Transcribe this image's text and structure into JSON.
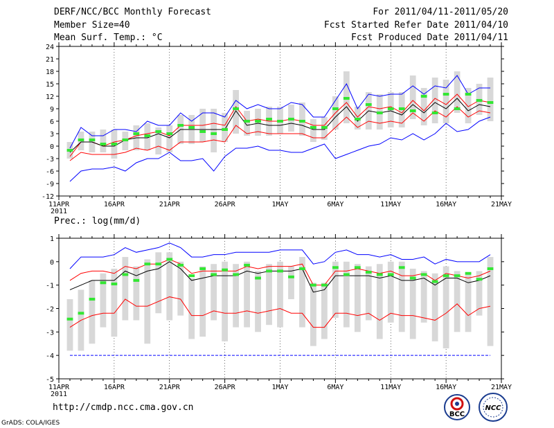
{
  "header": {
    "title": "DERF/NCC/BCC Monthly Forecast",
    "member_size": "Member Size=40",
    "variable": "Mean Surf. Temp.: °C",
    "period": "For 2011/04/11-2011/05/20",
    "start_date": "Fcst Started Refer Date 2011/04/10",
    "produced_date": "Fcst Produced Date 2011/04/11"
  },
  "footer": {
    "url": "http://cmdp.ncc.cma.gov.cn",
    "grads": "GrADS: COLA/IGES",
    "logo_left": "BCC",
    "logo_right": "NCC"
  },
  "colors": {
    "box": "#d8d8d8",
    "median": "#33e633",
    "mean": "#000000",
    "quartile": "#ff0000",
    "extreme": "#0000ff"
  },
  "chart_data": [
    {
      "type": "box-line",
      "title": "Mean Surf. Temp.: °C",
      "xlabel": "",
      "ylabel": "",
      "ylim": [
        -12,
        24
      ],
      "yticks": [
        -12,
        -9,
        -6,
        -3,
        0,
        3,
        6,
        9,
        12,
        15,
        18,
        21,
        24
      ],
      "xticks": [
        {
          "day": 0,
          "label": "11APR",
          "sub": "2011"
        },
        {
          "day": 5,
          "label": "16APR"
        },
        {
          "day": 10,
          "label": "21APR"
        },
        {
          "day": 15,
          "label": "26APR"
        },
        {
          "day": 20,
          "label": "1MAY"
        },
        {
          "day": 25,
          "label": "6MAY"
        },
        {
          "day": 30,
          "label": "11MAY"
        },
        {
          "day": 35,
          "label": "16MAY"
        },
        {
          "day": 40,
          "label": "21MAY"
        }
      ],
      "x": [
        1,
        2,
        3,
        4,
        5,
        6,
        7,
        8,
        9,
        10,
        11,
        12,
        13,
        14,
        15,
        16,
        17,
        18,
        19,
        20,
        21,
        22,
        23,
        24,
        25,
        26,
        27,
        28,
        29,
        30,
        31,
        32,
        33,
        34,
        35,
        36,
        37,
        38,
        39
      ],
      "series": [
        {
          "name": "max",
          "values": [
            -8.5,
            -6,
            -5.5,
            -5.5,
            -5,
            -6,
            -4,
            -3,
            -3,
            -1.5,
            -3.5,
            -3.5,
            -3,
            -6,
            -2.5,
            -0.5,
            -0.5,
            0,
            -1,
            -1,
            -1.5,
            -1.5,
            -0.5,
            0.5,
            -3,
            -2,
            -1,
            0,
            0.5,
            2,
            1.5,
            3,
            1.5,
            3,
            5.5,
            3.5,
            4,
            6,
            7
          ]
        },
        {
          "name": "q75",
          "values": [
            -2.5,
            1,
            1,
            0,
            1,
            1.5,
            2.5,
            3,
            3.5,
            2.5,
            5,
            5,
            5,
            5.5,
            5,
            9.5,
            6,
            6.5,
            6,
            6,
            6.5,
            6,
            5,
            5,
            8,
            10.5,
            7,
            9.5,
            9,
            9.5,
            8,
            11,
            8.5,
            11.5,
            10,
            12.5,
            9.5,
            11,
            10.5
          ]
        },
        {
          "name": "mean",
          "values": [
            -1.5,
            1,
            1,
            0,
            0,
            1.5,
            2,
            2,
            3,
            2,
            4,
            4,
            4,
            4,
            4,
            8.5,
            5,
            5.5,
            5,
            5,
            5.5,
            5,
            4,
            4,
            7,
            9.5,
            6,
            8.5,
            8,
            8.5,
            7.5,
            10,
            8,
            10.5,
            9,
            11.5,
            8.5,
            10,
            9.5
          ]
        },
        {
          "name": "q25",
          "values": [
            -3.5,
            -1.5,
            -2,
            -2,
            -2,
            -1.5,
            -0.5,
            -1,
            0,
            -1,
            1,
            1,
            1,
            1.5,
            1,
            5,
            3,
            3.5,
            3,
            3,
            3,
            3,
            2,
            2,
            4.5,
            7,
            4.5,
            6,
            5.5,
            6,
            5.5,
            8,
            6,
            8.5,
            7,
            9.5,
            7,
            8.5,
            8
          ]
        },
        {
          "name": "min",
          "values": [
            -0.5,
            4.5,
            2.5,
            2.5,
            4,
            4,
            3.5,
            6,
            5,
            5,
            8,
            6,
            8,
            8,
            7,
            11,
            9,
            10,
            9,
            9,
            10.5,
            10,
            7,
            7,
            11,
            15,
            9,
            12.5,
            12,
            12.5,
            12.5,
            14.5,
            12.5,
            14.5,
            14,
            17,
            12.5,
            14,
            14
          ]
        },
        {
          "name": "median",
          "values": [
            -1,
            1.5,
            1.5,
            0.5,
            0.5,
            1.5,
            3,
            2.5,
            3.5,
            3,
            5,
            4.5,
            3.5,
            3,
            4,
            9,
            6,
            6,
            6.5,
            6,
            6.5,
            6,
            4.5,
            4.5,
            9,
            11.5,
            6.5,
            10,
            8,
            9,
            9,
            8.5,
            12,
            8,
            12.5,
            9,
            12.5,
            11,
            10.5
          ]
        }
      ],
      "boxes": {
        "low": [
          -3,
          -1,
          -1.5,
          -1.5,
          -3,
          -1,
          -1,
          -1,
          -2,
          -1.5,
          0.5,
          0.5,
          1,
          -1.5,
          1,
          3,
          2.5,
          2.5,
          2.5,
          3,
          3.5,
          2.5,
          1,
          1.5,
          4,
          5.5,
          4,
          4,
          4,
          4.5,
          4.5,
          6.5,
          5,
          5.5,
          5.5,
          8,
          5.5,
          7.5,
          6
        ],
        "high": [
          1,
          3.5,
          3.5,
          4,
          4,
          3.5,
          5,
          5.5,
          4.5,
          5,
          7.5,
          7.5,
          9,
          9,
          8,
          13.5,
          8.5,
          9,
          9.5,
          9.5,
          10,
          10.5,
          6.5,
          7,
          12,
          18,
          9.5,
          13,
          12.5,
          13,
          13,
          17,
          14,
          16.5,
          16,
          18,
          14,
          15,
          16.5
        ]
      },
      "legend": "none"
    },
    {
      "type": "box-line",
      "title": "Prec.: log(mm/d)",
      "xlabel": "",
      "ylabel": "",
      "ylim": [
        -5,
        1
      ],
      "yticks": [
        -5,
        -4,
        -3,
        -2,
        -1,
        0,
        1
      ],
      "xticks": [
        {
          "day": 0,
          "label": "11APR",
          "sub": "2011"
        },
        {
          "day": 5,
          "label": "16APR"
        },
        {
          "day": 10,
          "label": "21APR"
        },
        {
          "day": 15,
          "label": "26APR"
        },
        {
          "day": 20,
          "label": "1MAY"
        },
        {
          "day": 25,
          "label": "6MAY"
        },
        {
          "day": 30,
          "label": "11MAY"
        },
        {
          "day": 35,
          "label": "16MAY"
        },
        {
          "day": 40,
          "label": "21MAY"
        }
      ],
      "x": [
        1,
        2,
        3,
        4,
        5,
        6,
        7,
        8,
        9,
        10,
        11,
        12,
        13,
        14,
        15,
        16,
        17,
        18,
        19,
        20,
        21,
        22,
        23,
        24,
        25,
        26,
        27,
        28,
        29,
        30,
        31,
        32,
        33,
        34,
        35,
        36,
        37,
        38,
        39
      ],
      "series": [
        {
          "name": "max",
          "values": [
            -4,
            -4,
            -4,
            -4,
            -4,
            -4,
            -4,
            -4,
            -4,
            -4,
            -4,
            -4,
            -4,
            -4,
            -4,
            -4,
            -4,
            -4,
            -4,
            -4,
            -4,
            -4,
            -4,
            -4,
            -4,
            -4,
            -4,
            -4,
            -4,
            -4,
            -4,
            -4,
            -4,
            -4,
            -4,
            -4,
            -4,
            -4,
            -4
          ]
        },
        {
          "name": "q75",
          "values": [
            -2.8,
            -2.5,
            -2.3,
            -2.2,
            -2.2,
            -1.6,
            -1.9,
            -1.9,
            -1.7,
            -1.5,
            -1.6,
            -2.3,
            -2.3,
            -2.1,
            -2.2,
            -2.2,
            -2.1,
            -2.2,
            -2.1,
            -2.0,
            -2.2,
            -2.2,
            -2.8,
            -2.8,
            -2.2,
            -2.2,
            -2.3,
            -2.2,
            -2.5,
            -2.2,
            -2.3,
            -2.3,
            -2.4,
            -2.5,
            -2.2,
            -1.8,
            -2.3,
            -2.0,
            -1.9
          ]
        },
        {
          "name": "mean",
          "values": [
            -1.2,
            -1.0,
            -0.8,
            -0.8,
            -0.8,
            -0.4,
            -0.6,
            -0.4,
            -0.3,
            0.0,
            -0.3,
            -0.8,
            -0.7,
            -0.6,
            -0.6,
            -0.6,
            -0.4,
            -0.5,
            -0.4,
            -0.4,
            -0.4,
            -0.3,
            -1.3,
            -1.2,
            -0.6,
            -0.6,
            -0.6,
            -0.6,
            -0.7,
            -0.6,
            -0.8,
            -0.8,
            -0.7,
            -1.0,
            -0.7,
            -0.7,
            -0.9,
            -0.8,
            -0.6
          ]
        },
        {
          "name": "q25",
          "values": [
            -0.8,
            -0.5,
            -0.4,
            -0.4,
            -0.5,
            -0.2,
            -0.3,
            -0.1,
            -0.1,
            0.1,
            -0.1,
            -0.5,
            -0.4,
            -0.4,
            -0.4,
            -0.4,
            -0.2,
            -0.3,
            -0.2,
            -0.2,
            -0.2,
            -0.1,
            -1.0,
            -1.0,
            -0.4,
            -0.4,
            -0.3,
            -0.4,
            -0.5,
            -0.4,
            -0.6,
            -0.6,
            -0.5,
            -0.8,
            -0.5,
            -0.6,
            -0.7,
            -0.6,
            -0.4
          ]
        },
        {
          "name": "min",
          "values": [
            -0.3,
            0.2,
            0.2,
            0.2,
            0.3,
            0.6,
            0.4,
            0.5,
            0.6,
            0.8,
            0.6,
            0.2,
            0.2,
            0.3,
            0.3,
            0.4,
            0.4,
            0.4,
            0.4,
            0.5,
            0.5,
            0.5,
            -0.1,
            0.0,
            0.4,
            0.5,
            0.3,
            0.3,
            0.2,
            0.3,
            0.1,
            0.1,
            0.2,
            -0.1,
            0.1,
            0.0,
            0.0,
            0.0,
            0.3
          ]
        },
        {
          "name": "median",
          "values": [
            -2.45,
            -2.2,
            -1.6,
            -0.9,
            -0.95,
            -0.55,
            -0.8,
            -0.1,
            -0.1,
            0.1,
            -0.15,
            -0.6,
            -0.3,
            -0.55,
            -0.35,
            -0.55,
            -0.15,
            -0.7,
            -0.4,
            -0.4,
            -0.65,
            -0.3,
            -1.0,
            -1.0,
            -0.25,
            -0.55,
            -0.25,
            -0.45,
            -0.55,
            -0.55,
            -0.25,
            -0.7,
            -0.55,
            -0.85,
            -0.6,
            -0.6,
            -0.5,
            -0.75,
            -0.3
          ]
        }
      ],
      "boxes": {
        "low": [
          -3.8,
          -3.8,
          -3.5,
          -2.8,
          -3.2,
          -2.5,
          -2.5,
          -3.5,
          -2.2,
          -2.5,
          -2.3,
          -3.3,
          -3.2,
          -2.5,
          -3.4,
          -2.8,
          -2.8,
          -3.0,
          -2.7,
          -2.8,
          -1.6,
          -2.8,
          -3.6,
          -3.3,
          -2.4,
          -2.8,
          -3.0,
          -2.5,
          -3.3,
          -2.6,
          -3.0,
          -3.3,
          -2.6,
          -3.4,
          -3.7,
          -3.0,
          -3.0,
          -2.3,
          -3.6
        ],
        "high": [
          -1.6,
          -1.2,
          -0.8,
          -0.5,
          -0.3,
          0.2,
          -0.2,
          0.1,
          0.4,
          0.4,
          0.0,
          -0.7,
          -0.2,
          -0.1,
          0.0,
          -0.1,
          0.0,
          -0.4,
          -0.1,
          0.0,
          -0.2,
          0.2,
          -0.9,
          -0.9,
          0.0,
          0.0,
          -0.1,
          -0.2,
          -0.1,
          0.0,
          0.0,
          -0.3,
          -0.4,
          -0.5,
          -0.2,
          -0.4,
          -0.5,
          -0.4,
          0.2
        ]
      },
      "legend": "none"
    }
  ]
}
